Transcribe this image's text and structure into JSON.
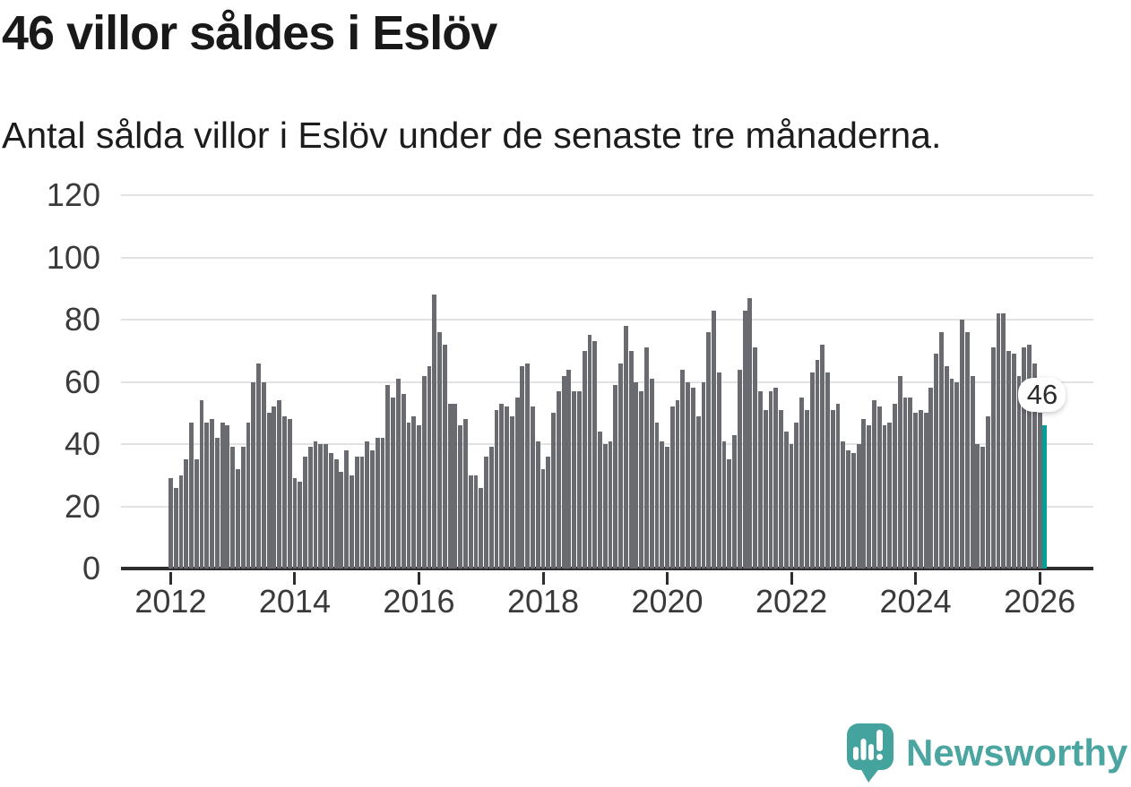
{
  "chart_data": {
    "type": "bar",
    "title": "46 villor såldes i Eslöv",
    "subtitle": "Antal sålda villor i Eslöv under de senaste tre månaderna.",
    "x_start_month": "2012-01",
    "x_end_month": "2026-02",
    "xticks": [
      2012,
      2014,
      2016,
      2018,
      2020,
      2022,
      2024,
      2026
    ],
    "yticks": [
      0,
      20,
      40,
      60,
      80,
      100,
      120
    ],
    "ylim": [
      0,
      120
    ],
    "grid": "horizontal",
    "bar_color": "#6a6a71",
    "highlight_color": "#00a099",
    "highlight_index": 169,
    "highlight_label": "46",
    "values": [
      29,
      26,
      30,
      35,
      47,
      35,
      54,
      47,
      48,
      42,
      47,
      46,
      39,
      32,
      39,
      47,
      60,
      66,
      60,
      50,
      52,
      54,
      49,
      48,
      29,
      28,
      36,
      39,
      41,
      40,
      40,
      37,
      35,
      31,
      38,
      30,
      36,
      36,
      41,
      38,
      42,
      42,
      59,
      55,
      61,
      56,
      47,
      49,
      46,
      62,
      65,
      88,
      76,
      72,
      53,
      53,
      46,
      48,
      30,
      30,
      26,
      36,
      39,
      51,
      53,
      52,
      49,
      55,
      65,
      66,
      52,
      41,
      32,
      36,
      50,
      57,
      62,
      64,
      57,
      57,
      70,
      75,
      73,
      44,
      40,
      41,
      59,
      66,
      78,
      70,
      60,
      57,
      71,
      61,
      47,
      41,
      39,
      52,
      54,
      64,
      60,
      58,
      49,
      60,
      76,
      83,
      63,
      41,
      35,
      43,
      64,
      83,
      87,
      71,
      57,
      51,
      57,
      58,
      51,
      44,
      40,
      47,
      55,
      51,
      63,
      67,
      72,
      63,
      51,
      53,
      41,
      38,
      37,
      40,
      48,
      46,
      54,
      52,
      46,
      47,
      53,
      62,
      55,
      55,
      50,
      51,
      50,
      58,
      69,
      76,
      65,
      61,
      60,
      80,
      76,
      62,
      40,
      39,
      49,
      71,
      82,
      82,
      70,
      69,
      62,
      71,
      72,
      66,
      50,
      46
    ]
  },
  "branding": {
    "wordmark": "Newsworthy",
    "icon": "speech-bubble-bar-chart-exclamation-icon",
    "icon_color": "#44A39D",
    "wordmark_color": "#4BA5A1"
  }
}
